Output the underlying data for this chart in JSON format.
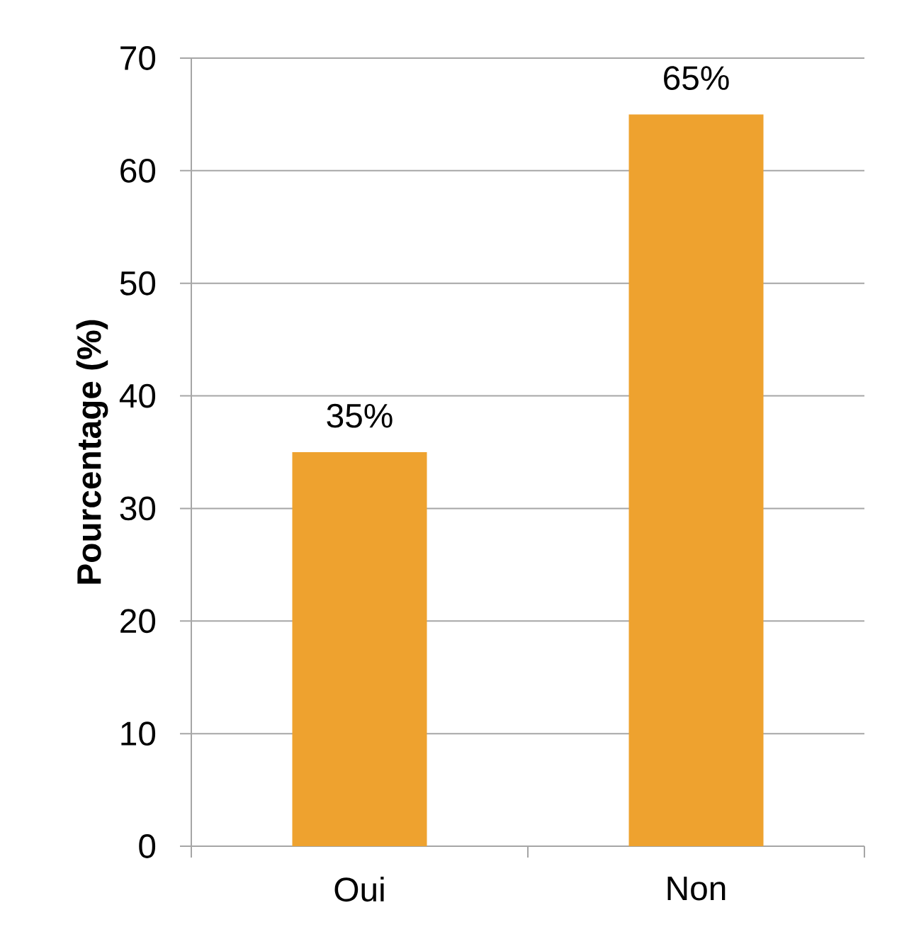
{
  "chart_data": {
    "type": "bar",
    "ylabel": "Pourcentage (%)",
    "categories": [
      "Oui",
      "Non"
    ],
    "values": [
      35,
      65
    ],
    "value_labels": [
      "35%",
      "65%"
    ],
    "color": "#eea22f",
    "ylim": [
      0,
      70
    ],
    "yticks": [
      0,
      10,
      20,
      30,
      40,
      50,
      60,
      70
    ],
    "grid": "y"
  }
}
